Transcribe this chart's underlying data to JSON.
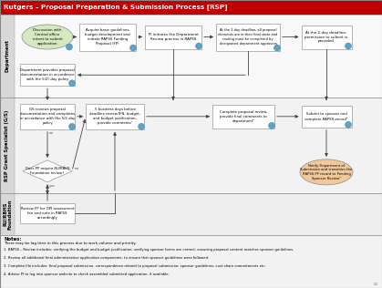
{
  "title": "Rutgers – Proposal Preparation & Submission Process [RSP]",
  "title_bg": "#c00000",
  "title_fg": "#ffffff",
  "fig_bg": "#ffffff",
  "box_bg": "#ffffff",
  "box_border": "#999999",
  "oval_dept_bg": "#d6e8c0",
  "oval_notify_bg": "#f2c89a",
  "diamond_bg": "#ffffff",
  "arrow_color": "#444444",
  "lane_label_bg": "#d8d8d8",
  "lane_content_bg": "#f7f7f7",
  "notes_bg": "#f2f2f2",
  "lanes": [
    "Department",
    "RSP Grant Specialist (G/S)",
    "RU/RBHS\nFoundation"
  ],
  "notes_title": "Notes:",
  "notes_line1": "There may be lag time in this process due to work volume and priority.",
  "notes_items": [
    "1. RAPSS – Review includes: verifying the budget and budget justification; verifying sponsor forms are correct; ensuring proposal content matches sponsor guidelines.",
    "2. Review all additional final administrative application components, to ensure that sponsor guidelines were followed.",
    "3. Complete file includes: final proposal submission, correspondence related to proposal submission, sponsor guidelines, cost share commitments etc.",
    "4. Advise PI to log into sponsor website to check assembled submitted application, if available."
  ],
  "page_num": "82"
}
